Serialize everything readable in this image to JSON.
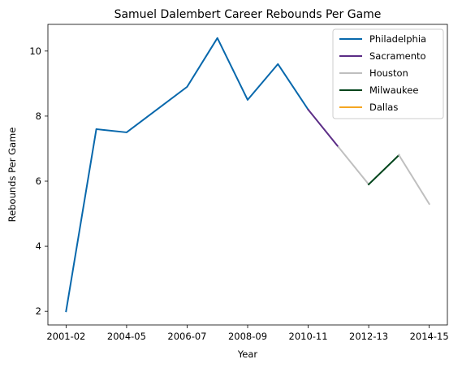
{
  "chart_data": {
    "type": "line",
    "title": "Samuel Dalembert Career Rebounds Per Game",
    "xlabel": "Year",
    "ylabel": "Rebounds Per Game",
    "x_ticks": [
      "2001-02",
      "2004-05",
      "2006-07",
      "2008-09",
      "2010-11",
      "2012-13",
      "2014-15"
    ],
    "y_ticks": [
      2,
      4,
      6,
      8,
      10
    ],
    "ylim": [
      1.58,
      10.82
    ],
    "legend_position": "top-right",
    "series": [
      {
        "name": "Philadelphia",
        "color": "#0868ac",
        "points": [
          [
            2001,
            2.0
          ],
          [
            2002,
            7.6
          ],
          [
            2003,
            7.5
          ],
          [
            2005,
            8.9
          ],
          [
            2006,
            10.4
          ],
          [
            2007,
            8.5
          ],
          [
            2008,
            9.6
          ],
          [
            2009,
            8.2
          ]
        ]
      },
      {
        "name": "Sacramento",
        "color": "#5b2c86",
        "points": [
          [
            2009,
            8.2
          ],
          [
            2010,
            7.05
          ]
        ]
      },
      {
        "name": "Houston",
        "color": "#bfbfbf",
        "points": [
          [
            2010,
            7.05
          ],
          [
            2011,
            5.9
          ]
        ]
      },
      {
        "name": "Milwaukee",
        "color": "#00441b",
        "points": [
          [
            2011,
            5.9
          ],
          [
            2012,
            6.8
          ]
        ]
      },
      {
        "name": "Dallas",
        "color": "#f5a623",
        "points": []
      },
      {
        "name": "",
        "color": "#bfbfbf",
        "points": [
          [
            2012,
            6.8
          ],
          [
            2013,
            5.3
          ]
        ]
      }
    ]
  }
}
